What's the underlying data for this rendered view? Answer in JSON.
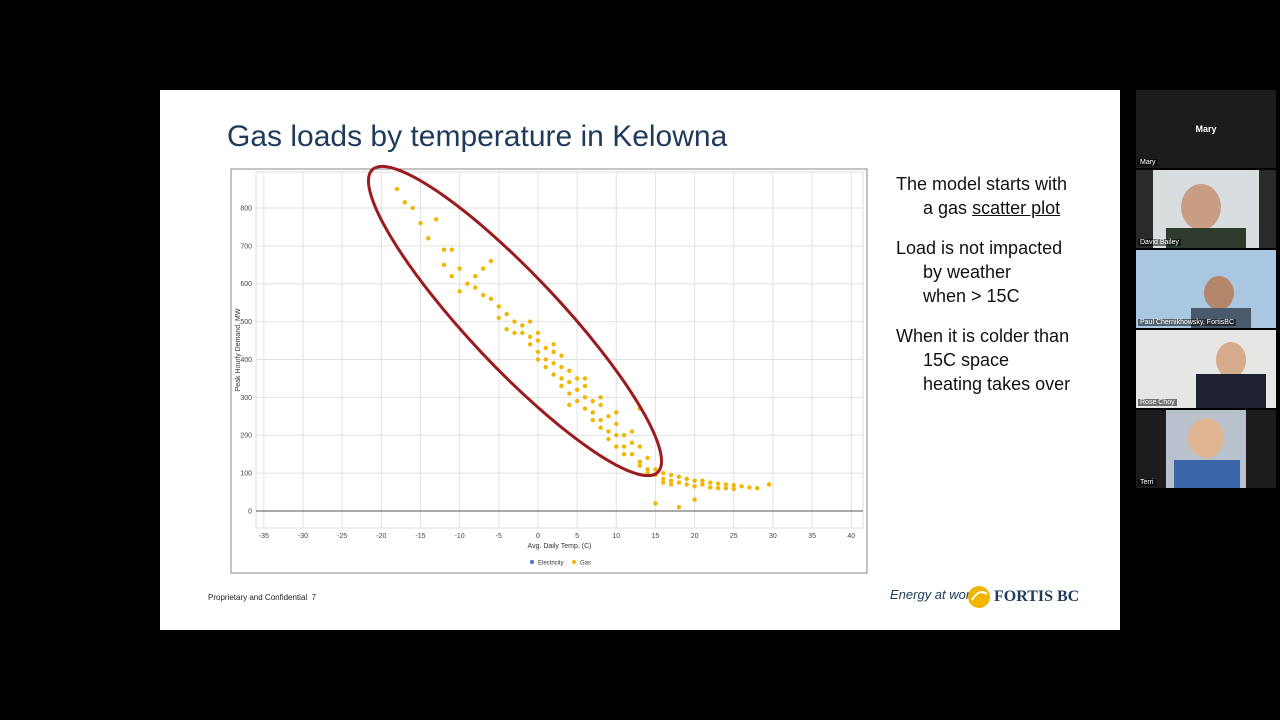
{
  "slide": {
    "title": "Gas loads by temperature in Kelowna",
    "bullets": [
      {
        "lines": [
          "The model starts with",
          "a gas"
        ],
        "underlined": "scatter plot"
      },
      {
        "lines": [
          "Load is not impacted",
          "by weather",
          "when > 15C"
        ]
      },
      {
        "lines": [
          "When it is colder than",
          "15C space",
          "heating takes over"
        ]
      }
    ],
    "footer": "Proprietary and Confidential",
    "page": "7",
    "tagline": "Energy at work",
    "brand": "FORTIS BC"
  },
  "participants": [
    "Mary",
    "David Bailey",
    "Paul Chernikhowsky, FortisBC",
    "Rose Choy",
    "Terri"
  ],
  "chart_data": {
    "type": "scatter",
    "xlabel": "Avg. Daily Temp. (C)",
    "ylabel": "Peak Hourly Demand, MW",
    "xlim": [
      -36,
      41.5
    ],
    "xticks": [
      -35,
      -30,
      -25,
      -20,
      -15,
      -10,
      -5,
      0,
      5,
      10,
      15,
      20,
      25,
      30,
      35,
      40
    ],
    "ylim": [
      -45,
      895
    ],
    "yticks": [
      0,
      100,
      200,
      300,
      400,
      500,
      600,
      700,
      800
    ],
    "grid": true,
    "legend": "bottom",
    "series": [
      {
        "name": "Electricity",
        "color": "#4472c4",
        "x": [],
        "values": []
      },
      {
        "name": "Gas",
        "color": "#f2b600",
        "x": [
          -18,
          -17,
          -16,
          -15,
          -13,
          -12,
          -11,
          -12,
          -11,
          -10,
          -9,
          -10,
          -8,
          -7,
          -6,
          -7,
          -6,
          -5,
          -4,
          -5,
          -3,
          -2,
          -2,
          -1,
          -1,
          0,
          0,
          0,
          1,
          1,
          1,
          2,
          2,
          2,
          3,
          3,
          3,
          4,
          4,
          4,
          5,
          5,
          5,
          6,
          6,
          6,
          7,
          7,
          7,
          8,
          8,
          8,
          9,
          9,
          9,
          10,
          10,
          10,
          11,
          11,
          11,
          12,
          12,
          13,
          13,
          13,
          14,
          14,
          14,
          -3,
          -1,
          3,
          6,
          8,
          10,
          12,
          13,
          -4,
          0,
          2,
          4,
          -8,
          -14,
          15,
          15,
          16,
          16,
          16,
          17,
          17,
          17,
          18,
          18,
          19,
          19,
          20,
          20,
          21,
          21,
          22,
          22,
          23,
          23,
          24,
          24,
          25,
          25,
          26,
          27,
          28,
          29.5,
          15,
          18,
          20
        ],
        "values": [
          850,
          815,
          800,
          760,
          770,
          690,
          690,
          650,
          620,
          640,
          600,
          580,
          590,
          640,
          660,
          570,
          560,
          540,
          520,
          510,
          500,
          490,
          470,
          460,
          440,
          450,
          420,
          400,
          430,
          400,
          380,
          420,
          390,
          360,
          380,
          350,
          330,
          370,
          340,
          310,
          350,
          320,
          290,
          330,
          300,
          270,
          290,
          260,
          240,
          280,
          240,
          220,
          250,
          210,
          190,
          230,
          200,
          170,
          200,
          170,
          150,
          180,
          150,
          170,
          130,
          120,
          140,
          110,
          100,
          470,
          500,
          410,
          350,
          300,
          260,
          210,
          270,
          480,
          470,
          440,
          280,
          620,
          720,
          110,
          95,
          100,
          85,
          75,
          95,
          80,
          70,
          90,
          75,
          85,
          70,
          80,
          65,
          80,
          70,
          75,
          62,
          72,
          60,
          70,
          60,
          68,
          58,
          65,
          62,
          60,
          70,
          20,
          10,
          30
        ]
      }
    ]
  }
}
